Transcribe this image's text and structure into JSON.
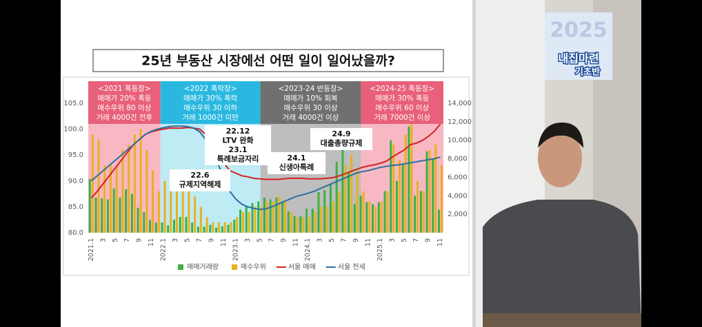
{
  "chart_data": {
    "type": "combo",
    "title": "25년 부동산 시장에선 어떤 일이 일어났을까?",
    "categories": [
      "2021.1",
      null,
      "3",
      null,
      "5",
      null,
      "7",
      null,
      "9",
      null,
      "11",
      null,
      "2022.1",
      null,
      "3",
      null,
      "5",
      null,
      "7",
      null,
      "9",
      null,
      "11",
      null,
      "2023.1",
      null,
      "3",
      null,
      "5",
      null,
      "7",
      null,
      "9",
      null,
      "11",
      null,
      "2024.1",
      null,
      "3",
      null,
      "5",
      null,
      "7",
      null,
      "9",
      null,
      "11",
      null,
      "2025.1",
      null,
      "3",
      null,
      "5",
      null,
      "7",
      null,
      "9",
      null,
      "11"
    ],
    "series": [
      {
        "name": "매매거래량",
        "type": "bar",
        "axis": "y2",
        "color": "#3cb043",
        "values": [
          5800,
          3800,
          3700,
          3600,
          4800,
          3800,
          4700,
          4200,
          2700,
          2200,
          1400,
          1100,
          1100,
          800,
          1400,
          1700,
          1700,
          1100,
          650,
          650,
          850,
          550,
          700,
          850,
          1400,
          2500,
          2900,
          3200,
          3400,
          3800,
          3600,
          3800,
          3400,
          2300,
          1800,
          1800,
          2600,
          2600,
          4400,
          4600,
          5200,
          7700,
          9400,
          6500,
          3100,
          4000,
          3300,
          3100,
          3300,
          4500,
          10000,
          5600,
          7400,
          11500,
          4000,
          4500,
          8800,
          8000,
          2500
        ]
      },
      {
        "name": "매수우위",
        "type": "bar",
        "color": "#e8b020",
        "values": [
          99,
          98,
          93,
          93,
          93,
          96,
          97,
          99,
          100,
          96,
          92,
          88,
          90,
          90,
          90,
          88,
          88,
          87,
          85,
          83,
          82,
          82,
          82,
          82,
          83,
          84,
          84,
          85,
          85,
          86,
          86,
          87,
          86,
          84,
          83,
          83,
          83,
          84,
          85,
          85,
          86,
          88,
          93,
          95,
          92,
          88,
          86,
          85,
          86,
          88,
          97,
          94,
          99,
          101,
          90,
          88,
          96,
          97,
          93
        ]
      },
      {
        "name": "서울 매매",
        "type": "line",
        "color": "#d42020",
        "values": [
          86.7,
          88,
          89.5,
          91,
          92.5,
          94,
          95.5,
          97,
          98,
          99,
          99.5,
          99.8,
          100,
          100.2,
          100.2,
          100.2,
          100.3,
          100.2,
          100,
          99,
          97.5,
          95.5,
          93.5,
          92,
          91.5,
          91,
          90.8,
          90.5,
          90.4,
          90.3,
          90.3,
          90.3,
          90.4,
          90.5,
          90.5,
          90.5,
          90.4,
          90.4,
          90.4,
          90.5,
          90.6,
          90.9,
          91.3,
          91.8,
          92.2,
          92.6,
          92.9,
          93.1,
          93.4,
          93.8,
          94.6,
          95.3,
          96,
          97,
          97.3,
          97.8,
          98.6,
          99.6,
          101
        ]
      },
      {
        "name": "서울 전세",
        "type": "line",
        "color": "#2c6fa0",
        "values": [
          90,
          91,
          92,
          93,
          94,
          95,
          96,
          97,
          98,
          99,
          99.6,
          100,
          100.3,
          100.5,
          100.6,
          100.6,
          100.5,
          100.2,
          99.5,
          98,
          96,
          93.5,
          90.5,
          88,
          86.5,
          85.5,
          85,
          84.7,
          84.5,
          84.6,
          85,
          85.5,
          86,
          86.5,
          87,
          87.3,
          87.6,
          88,
          88.5,
          89,
          89.5,
          90,
          90.5,
          91,
          91.5,
          91.8,
          92,
          92.3,
          92.6,
          92.8,
          93,
          93.1,
          93.3,
          93.5,
          93.7,
          93.9,
          94.1,
          94.3,
          94.6
        ]
      }
    ],
    "ylim": [
      80,
      105
    ],
    "yticks": [
      {
        "value": 80,
        "label": "80.0"
      },
      {
        "value": 85,
        "label": "85.0"
      },
      {
        "value": 90,
        "label": "90.0"
      },
      {
        "value": 95,
        "label": "95.0"
      },
      {
        "value": 100,
        "label": "100.0"
      },
      {
        "value": 105,
        "label": "105.0"
      }
    ],
    "y2lim": [
      0,
      14000
    ],
    "y2ticks": [
      {
        "value": 2000,
        "label": "2,000"
      },
      {
        "value": 4000,
        "label": "4,000"
      },
      {
        "value": 6000,
        "label": "6,000"
      },
      {
        "value": 8000,
        "label": "8,000"
      },
      {
        "value": 10000,
        "label": "10,000"
      },
      {
        "value": 12000,
        "label": "12,000"
      },
      {
        "value": 14000,
        "label": "14,000"
      }
    ],
    "periods": [
      {
        "title": "<2021 폭등장>",
        "lines": [
          "매매가 20% 폭등",
          "매수우위 80 이상",
          "거래 4000건 전후"
        ]
      },
      {
        "title": "<2022 폭락장>",
        "lines": [
          "매매가 30% 폭락",
          "매수우위 30 이하",
          "거래 1000건 미만"
        ]
      },
      {
        "title": "<2023-24 반등장>",
        "lines": [
          "매매가 10% 회복",
          "매수우위 30 이상",
          "거래 4000건 이상"
        ]
      },
      {
        "title": "<2024-25 폭등장>",
        "lines": [
          "매매가 30% 폭등",
          "매수우위 60 이상",
          "거래 7000건 이상"
        ]
      }
    ],
    "annotations": [
      {
        "lines": [
          "22.12",
          "LTV 완화",
          "23.1",
          "특례보금자리"
        ]
      },
      {
        "lines": [
          "22.6",
          "규제지역해제"
        ]
      },
      {
        "lines": [
          "24.1",
          "신생아특례"
        ]
      },
      {
        "lines": [
          "24.9",
          "대출총량규제"
        ]
      }
    ]
  },
  "overlay": {
    "badge_year": "2025",
    "badge_title": "내집마련",
    "badge_sub": "기초반"
  }
}
